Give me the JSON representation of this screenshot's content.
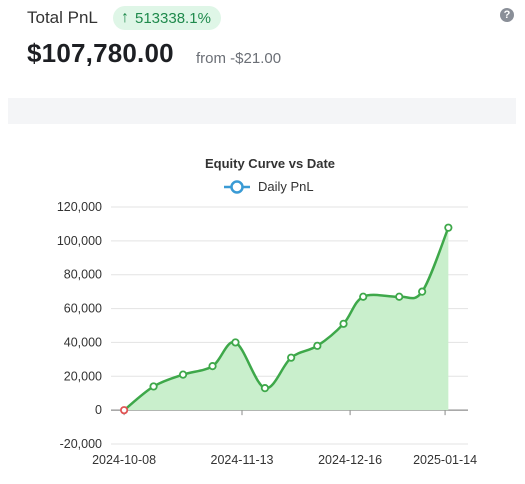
{
  "header": {
    "label": "Total PnL",
    "change_percent": "513338.1%",
    "change_arrow": "↑",
    "amount": "$107,780.00",
    "from_text": "from -$21.00",
    "help_icon": "?",
    "colors": {
      "badge_bg": "#dff6e7",
      "badge_text": "#1f8a4c"
    }
  },
  "chart_data": {
    "type": "line",
    "title": "Equity Curve vs Date",
    "xlabel": "",
    "ylabel": "",
    "x_ticks": [
      "2024-10-08",
      "2024-11-13",
      "2024-12-16",
      "2025-01-14"
    ],
    "y_ticks": [
      "120,000",
      "100,000",
      "80,000",
      "60,000",
      "40,000",
      "20,000",
      "0",
      "-20,000"
    ],
    "ylim": [
      -20000,
      120000
    ],
    "grid": true,
    "legend_position": "top-center",
    "series": [
      {
        "name": "Daily PnL",
        "color": "#3ea84a",
        "fill": "#c9efcc",
        "x": [
          "2024-10-08",
          "2024-10-17",
          "2024-10-26",
          "2024-11-04",
          "2024-11-11",
          "2024-11-20",
          "2024-11-28",
          "2024-12-06",
          "2024-12-14",
          "2024-12-20",
          "2024-12-31",
          "2025-01-07",
          "2025-01-15"
        ],
        "values": [
          -21,
          14000,
          21000,
          26000,
          40000,
          13000,
          31000,
          38000,
          51000,
          67000,
          67000,
          70000,
          107780
        ]
      }
    ],
    "first_point_color": "#e05454",
    "point_fill": "#ffffff"
  }
}
